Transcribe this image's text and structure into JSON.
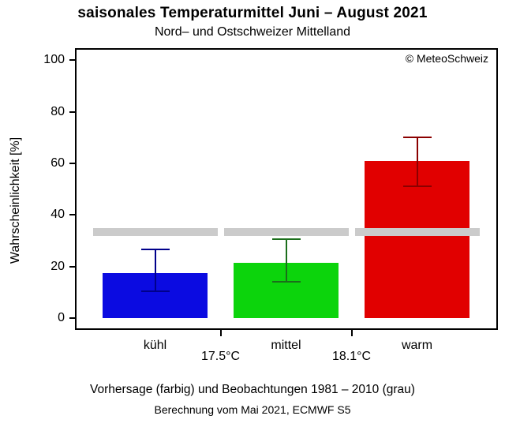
{
  "copyright": "© MeteoSchweiz",
  "footer": {
    "line1": "Vorhersage (farbig) und Beobachtungen 1981 – 2010 (grau)",
    "line2": "Berechnung vom Mai 2021, ECMWF S5"
  },
  "chart_data": {
    "type": "bar",
    "title": "saisonales Temperaturmittel Juni – August 2021",
    "subtitle": "Nord– und Ostschweizer Mittelland",
    "ylabel": "Wahrscheinlichkeit [%]",
    "xlabel": "",
    "ylim": [
      0,
      100
    ],
    "yticks": [
      0,
      20,
      40,
      60,
      80,
      100
    ],
    "grid": false,
    "legend": "none",
    "categories": [
      "kühl",
      "mittel",
      "warm"
    ],
    "category_boundaries": [
      "17.5°C",
      "18.1°C"
    ],
    "bars": {
      "name": "Vorhersage",
      "values": [
        17.5,
        21.5,
        61
      ],
      "ci_low": [
        10.5,
        14,
        51
      ],
      "ci_high": [
        26.5,
        30.5,
        70
      ],
      "fill_colors": [
        "#0b0be1",
        "#0cd40c",
        "#e10000"
      ],
      "whisker_colors": [
        "#00008b",
        "#1b6e1b",
        "#8b0000"
      ]
    },
    "observations": {
      "name": "Beobachtungen 1981 – 2010",
      "values": [
        33.3,
        33.3,
        33.3
      ],
      "color": "#cbcbcb",
      "style": "band"
    }
  }
}
